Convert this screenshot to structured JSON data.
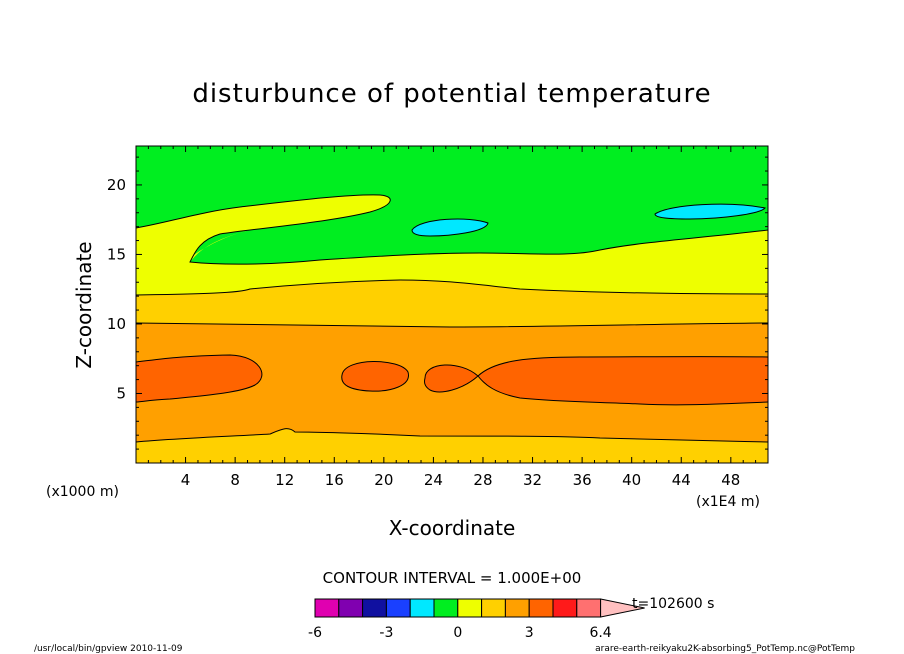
{
  "chart_data": {
    "type": "contour",
    "title": "disturbunce of potential temperature",
    "xlabel": "X-coordinate",
    "ylabel": "Z-coordinate",
    "x_unit_label": "(x1E4 m)",
    "y_unit_label": "(x1000 m)",
    "xlim": [
      0,
      51
    ],
    "ylim": [
      0,
      22.8
    ],
    "x_ticks": [
      "4",
      "8",
      "12",
      "16",
      "20",
      "24",
      "28",
      "32",
      "36",
      "40",
      "44",
      "48"
    ],
    "y_ticks": [
      "5",
      "10",
      "15",
      "20"
    ],
    "contour_interval_label": "CONTOUR INTERVAL = 1.000E+00",
    "time_label": "t=102600 s",
    "colorbar": {
      "tick_labels": [
        "-6",
        "-3",
        "0",
        "3",
        "6.4"
      ],
      "colors": [
        "#e000b0",
        "#8000b0",
        "#1010a0",
        "#1a40ff",
        "#00e8ff",
        "#00ee20",
        "#eeff00",
        "#ffd000",
        "#ffa000",
        "#ff6400",
        "#ff1a1a",
        "#ff7070",
        "#ffc0c0"
      ]
    },
    "regions": [
      {
        "label": "1 to 2",
        "color": "#ffa000",
        "z_range": [
          0,
          1.5
        ]
      },
      {
        "label": "2 to 3",
        "color": "#ffa000",
        "z_range": [
          1.5,
          4.5
        ]
      },
      {
        "label": "3 to 4",
        "color": "#ff6400",
        "z_range": [
          4.5,
          7.5
        ]
      },
      {
        "label": "2 to 3",
        "color": "#ffa000",
        "z_range": [
          7.5,
          10
        ]
      },
      {
        "label": "1 to 2",
        "color": "#ffd000",
        "z_range": [
          10,
          12.2
        ]
      },
      {
        "label": "0 to 1",
        "color": "#eeff00",
        "z_range": [
          12.2,
          16.5
        ]
      },
      {
        "label": "-1 to 0",
        "color": "#00ee20",
        "z_range": [
          16.5,
          22.8
        ]
      },
      {
        "label": "-2 to -1",
        "color": "#00e8ff",
        "z_range": [
          16.6,
          18.5
        ]
      }
    ]
  },
  "footer": {
    "left": "/usr/local/bin/gpview  2010-11-09",
    "right": "arare-earth-reikyaku2K-absorbing5_PotTemp.nc@PotTemp"
  }
}
